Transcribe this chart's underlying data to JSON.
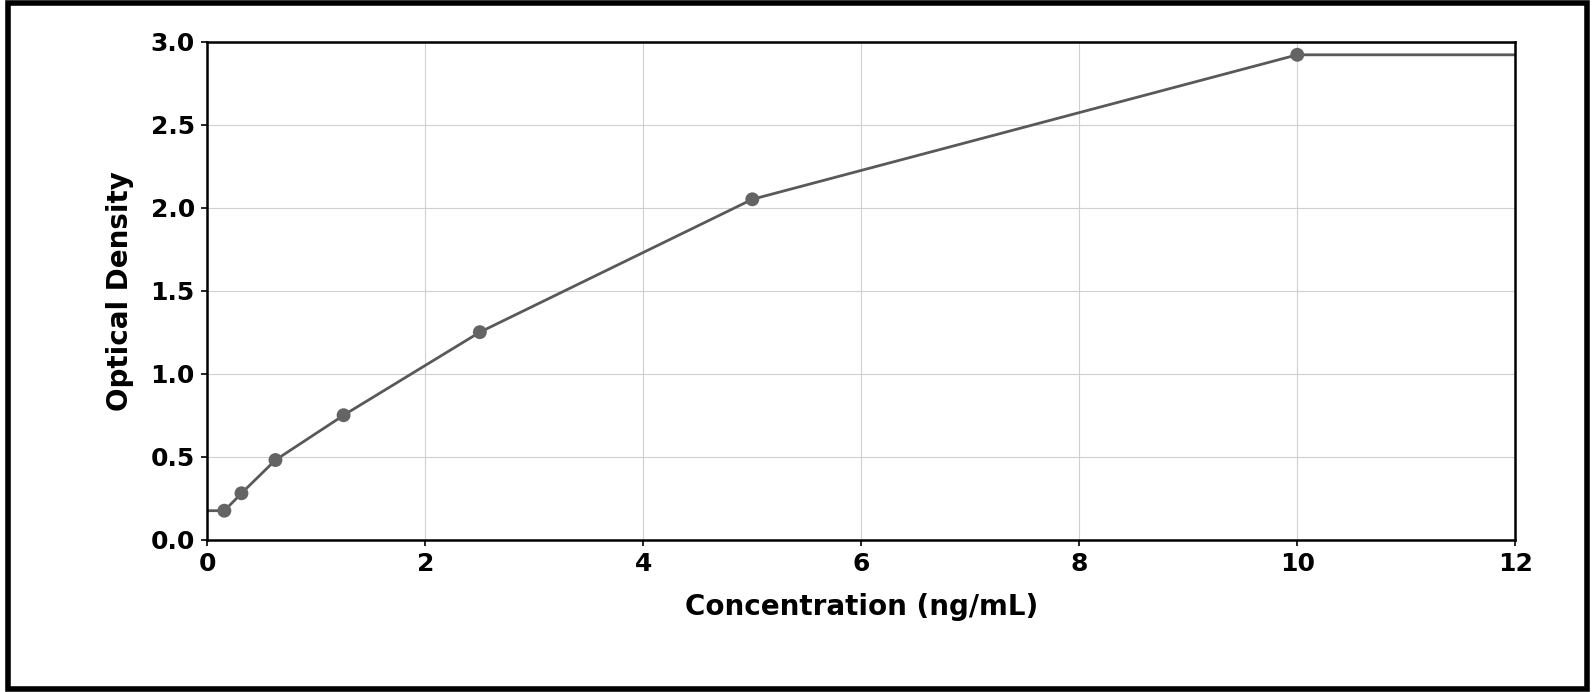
{
  "x_data": [
    0.156,
    0.313,
    0.625,
    1.25,
    2.5,
    5.0,
    10.0
  ],
  "y_data": [
    0.175,
    0.28,
    0.48,
    0.75,
    1.25,
    2.05,
    2.92
  ],
  "point_color": "#646464",
  "line_color": "#595959",
  "xlabel": "Concentration (ng/mL)",
  "ylabel": "Optical Density",
  "xlim": [
    0,
    12
  ],
  "ylim": [
    0,
    3
  ],
  "xticks": [
    0,
    2,
    4,
    6,
    8,
    10,
    12
  ],
  "yticks": [
    0,
    0.5,
    1.0,
    1.5,
    2.0,
    2.5,
    3.0
  ],
  "xlabel_fontsize": 20,
  "ylabel_fontsize": 20,
  "tick_fontsize": 18,
  "point_size": 100,
  "line_width": 2.0,
  "background_color": "#ffffff",
  "grid_color": "#d0d0d0",
  "spine_color": "#000000",
  "outer_border_color": "#000000",
  "outer_border_lw": 4
}
